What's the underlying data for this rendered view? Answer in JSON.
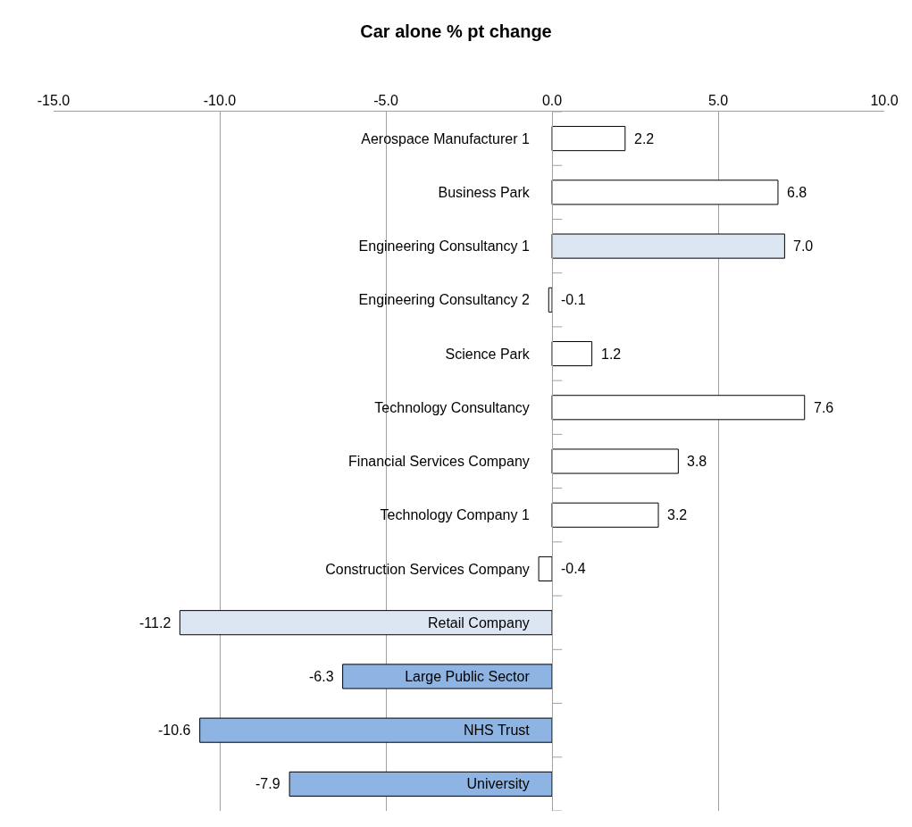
{
  "chart_data": {
    "type": "bar",
    "orientation": "horizontal",
    "title": "Car alone % pt change",
    "categories": [
      "Aerospace Manufacturer 1",
      "Business Park",
      "Engineering Consultancy 1",
      "Engineering Consultancy 2",
      "Science Park",
      "Technology Consultancy",
      "Financial Services Company",
      "Technology Company 1",
      "Construction Services Company",
      "Retail Company",
      "Large Public Sector",
      "NHS Trust",
      "University"
    ],
    "values": [
      2.2,
      6.8,
      7.0,
      -0.1,
      1.2,
      7.6,
      3.8,
      3.2,
      -0.4,
      -11.2,
      -6.3,
      -10.6,
      -7.9
    ],
    "value_labels": [
      "2.2",
      "6.8",
      "7.0",
      "-0.1",
      "1.2",
      "7.6",
      "3.8",
      "3.2",
      "-0.4",
      "-11.2",
      "-6.3",
      "-10.6",
      "-7.9"
    ],
    "colors": [
      "#ffffff",
      "#ffffff",
      "#dce6f2",
      "#ffffff",
      "#ffffff",
      "#ffffff",
      "#ffffff",
      "#ffffff",
      "#ffffff",
      "#dce6f2",
      "#8db4e2",
      "#8db4e2",
      "#8db4e2"
    ],
    "xlim": [
      -15,
      10
    ],
    "xticks": [
      {
        "value": -15,
        "label": "-15.0"
      },
      {
        "value": -10,
        "label": "-10.0"
      },
      {
        "value": -5,
        "label": "-5.0"
      },
      {
        "value": 0,
        "label": "0.0"
      },
      {
        "value": 5,
        "label": "5.0"
      },
      {
        "value": 10,
        "label": "10.0"
      }
    ],
    "grid": "x"
  }
}
